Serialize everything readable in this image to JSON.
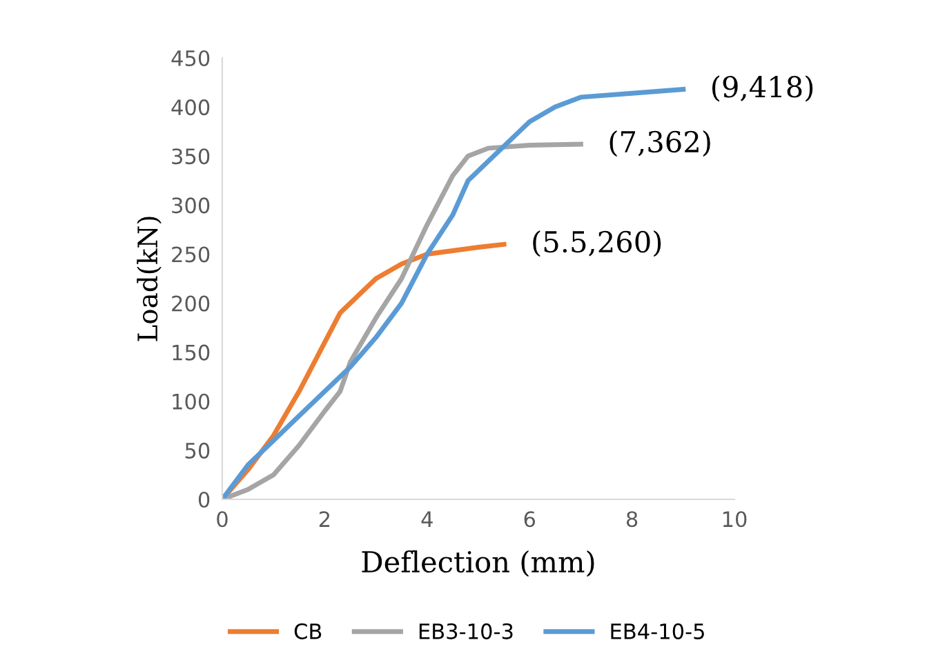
{
  "chart_data": {
    "type": "line",
    "xlabel": "Deflection (mm)",
    "ylabel": "Load(kN)",
    "xlim": [
      0,
      10
    ],
    "xticks": [
      0,
      2,
      4,
      6,
      8,
      10
    ],
    "ylim": [
      0,
      450
    ],
    "yticks": [
      0,
      50,
      100,
      150,
      200,
      250,
      300,
      350,
      400,
      450
    ],
    "grid": false,
    "legend": "bottom",
    "marker": "none",
    "line_style": "solid",
    "series": [
      {
        "name": "CB",
        "color": "#ed7d31",
        "x": [
          0,
          0.5,
          1,
          1.5,
          2,
          2.3,
          2.7,
          3,
          3.5,
          4,
          5,
          5.5
        ],
        "values": [
          0,
          30,
          65,
          110,
          160,
          190,
          210,
          225,
          240,
          250,
          257,
          260
        ]
      },
      {
        "name": "EB3-10-3",
        "color": "#a5a5a5",
        "x": [
          0,
          0.5,
          1,
          1.5,
          2,
          2.3,
          2.5,
          3,
          3.5,
          4,
          4.5,
          4.8,
          5.2,
          6,
          7
        ],
        "values": [
          0,
          10,
          25,
          55,
          90,
          110,
          140,
          185,
          225,
          280,
          330,
          350,
          358,
          361,
          362
        ]
      },
      {
        "name": "EB4-10-5",
        "color": "#5b9bd5",
        "x": [
          0,
          0.5,
          1,
          1.5,
          2,
          2.5,
          3,
          3.5,
          4,
          4.5,
          4.8,
          5.2,
          6,
          6.5,
          7,
          8,
          9
        ],
        "values": [
          0,
          35,
          60,
          85,
          110,
          135,
          165,
          200,
          250,
          290,
          325,
          345,
          385,
          400,
          410,
          414,
          418
        ]
      }
    ],
    "annotations": [
      {
        "text": "(5.5,260)",
        "x": 5.5,
        "y": 260
      },
      {
        "text": "(7,362)",
        "x": 7,
        "y": 362
      },
      {
        "text": "(9,418)",
        "x": 9,
        "y": 418
      }
    ]
  }
}
